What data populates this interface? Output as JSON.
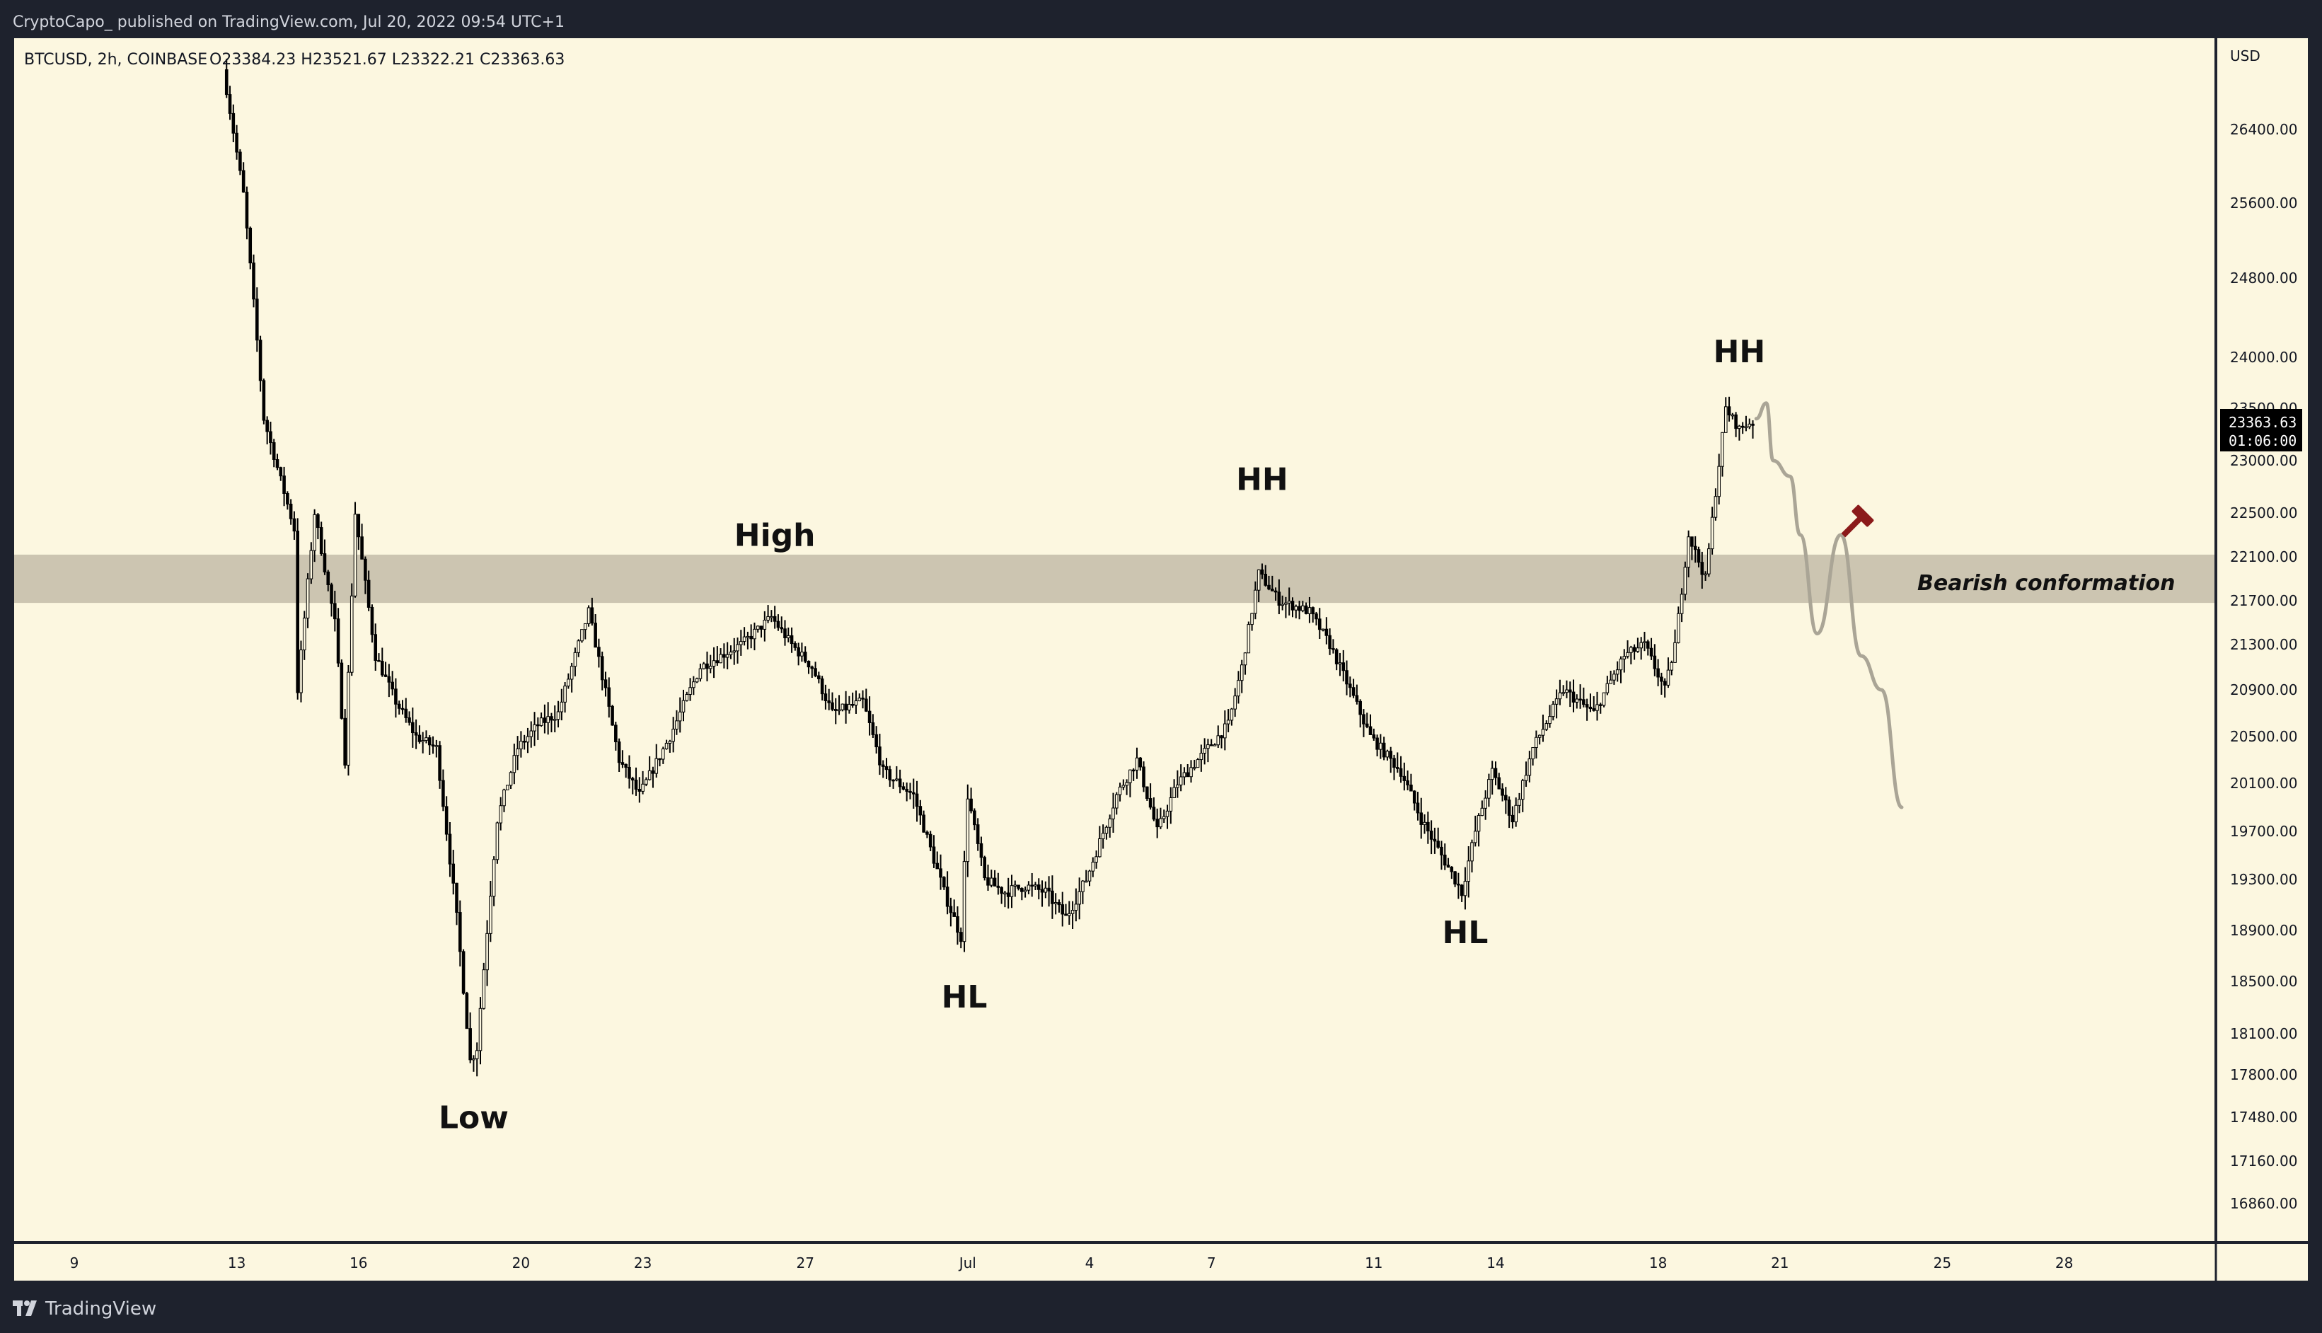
{
  "header": {
    "publish_line": "CryptoCapo_  published on TradingView.com, Jul 20, 2022 09:54 UTC+1"
  },
  "legend": {
    "symbol_line": "BTCUSD, 2h, COINBASE",
    "ohlc_line": "O23384.23  H23521.67  L23322.21  C23363.63"
  },
  "footer": {
    "brand": "TradingView"
  },
  "colors": {
    "background": "#fcf7e0",
    "frame": "#1e222d",
    "candle": "#000000",
    "zone": "#c9c2ae",
    "projection": "#aaa596",
    "tool_icon": "#8b1a1a",
    "price_tag": "#000000"
  },
  "chart_data": {
    "type": "candlestick",
    "title": "BTCUSD, 2h, COINBASE",
    "currency": "USD",
    "ylim": [
      16600,
      27100
    ],
    "y_ticks": [
      "26400.00",
      "25600.00",
      "24800.00",
      "24000.00",
      "23500.00",
      "23000.00",
      "22500.00",
      "22100.00",
      "21700.00",
      "21300.00",
      "20900.00",
      "20500.00",
      "20100.00",
      "19700.00",
      "19300.00",
      "18900.00",
      "18500.00",
      "18100.00",
      "17800.00",
      "17480.00",
      "17160.00",
      "16860.00"
    ],
    "x_ticks": [
      "9",
      "13",
      "16",
      "20",
      "23",
      "27",
      "Jul",
      "4",
      "7",
      "11",
      "14",
      "18",
      "21",
      "25",
      "28"
    ],
    "last_price": {
      "value": "23363.63",
      "countdown": "01:06:00"
    },
    "price_path": [
      {
        "t": "Jun 12 18:00",
        "p": 27050
      },
      {
        "t": "Jun 13 06:00",
        "p": 25700
      },
      {
        "t": "Jun 13 18:00",
        "p": 23400
      },
      {
        "t": "Jun 14 12:00",
        "p": 22350
      },
      {
        "t": "Jun 14 14:00",
        "p": 20900
      },
      {
        "t": "Jun 15 00:00",
        "p": 22500
      },
      {
        "t": "Jun 15 12:00",
        "p": 21500
      },
      {
        "t": "Jun 15 18:00",
        "p": 20300
      },
      {
        "t": "Jun 16 00:00",
        "p": 22500
      },
      {
        "t": "Jun 16 12:00",
        "p": 21200
      },
      {
        "t": "Jun 17 00:00",
        "p": 20800
      },
      {
        "t": "Jun 17 12:00",
        "p": 20500
      },
      {
        "t": "Jun 18 00:00",
        "p": 20400
      },
      {
        "t": "Jun 18 12:00",
        "p": 19000
      },
      {
        "t": "Jun 18 20:00",
        "p": 17900
      },
      {
        "t": "Jun 19 00:00",
        "p": 18000
      },
      {
        "t": "Jun 19 12:00",
        "p": 19800
      },
      {
        "t": "Jun 20 00:00",
        "p": 20400
      },
      {
        "t": "Jun 20 12:00",
        "p": 20600
      },
      {
        "t": "Jun 21 00:00",
        "p": 20700
      },
      {
        "t": "Jun 21 18:00",
        "p": 21600
      },
      {
        "t": "Jun 22 12:00",
        "p": 20300
      },
      {
        "t": "Jun 23 00:00",
        "p": 20000
      },
      {
        "t": "Jun 23 18:00",
        "p": 20500
      },
      {
        "t": "Jun 24 12:00",
        "p": 21100
      },
      {
        "t": "Jun 25 12:00",
        "p": 21300
      },
      {
        "t": "Jun 26 06:00",
        "p": 21550
      },
      {
        "t": "Jun 26 18:00",
        "p": 21300
      },
      {
        "t": "Jun 27 06:00",
        "p": 21100
      },
      {
        "t": "Jun 27 18:00",
        "p": 20700
      },
      {
        "t": "Jun 28 12:00",
        "p": 20800
      },
      {
        "t": "Jun 29 00:00",
        "p": 20200
      },
      {
        "t": "Jun 29 18:00",
        "p": 20000
      },
      {
        "t": "Jun 30 12:00",
        "p": 19200
      },
      {
        "t": "Jun 30 22:00",
        "p": 18850
      },
      {
        "t": "Jul 1 02:00",
        "p": 20000
      },
      {
        "t": "Jul 1 12:00",
        "p": 19300
      },
      {
        "t": "Jul 2 00:00",
        "p": 19200
      },
      {
        "t": "Jul 2 12:00",
        "p": 19250
      },
      {
        "t": "Jul 3 00:00",
        "p": 19200
      },
      {
        "t": "Jul 3 12:00",
        "p": 19000
      },
      {
        "t": "Jul 4 00:00",
        "p": 19300
      },
      {
        "t": "Jul 4 18:00",
        "p": 20000
      },
      {
        "t": "Jul 5 06:00",
        "p": 20300
      },
      {
        "t": "Jul 5 18:00",
        "p": 19700
      },
      {
        "t": "Jul 6 06:00",
        "p": 20100
      },
      {
        "t": "Jul 6 18:00",
        "p": 20300
      },
      {
        "t": "Jul 7 12:00",
        "p": 20600
      },
      {
        "t": "Jul 7 20:00",
        "p": 21100
      },
      {
        "t": "Jul 8 06:00",
        "p": 21950
      },
      {
        "t": "Jul 8 18:00",
        "p": 21700
      },
      {
        "t": "Jul 9 12:00",
        "p": 21600
      },
      {
        "t": "Jul 10 00:00",
        "p": 21300
      },
      {
        "t": "Jul 10 12:00",
        "p": 20900
      },
      {
        "t": "Jul 11 00:00",
        "p": 20500
      },
      {
        "t": "Jul 11 18:00",
        "p": 20200
      },
      {
        "t": "Jul 12 06:00",
        "p": 19800
      },
      {
        "t": "Jul 12 18:00",
        "p": 19500
      },
      {
        "t": "Jul 13 06:00",
        "p": 19200
      },
      {
        "t": "Jul 13 14:00",
        "p": 19700
      },
      {
        "t": "Jul 14 00:00",
        "p": 20200
      },
      {
        "t": "Jul 14 12:00",
        "p": 19800
      },
      {
        "t": "Jul 15 00:00",
        "p": 20400
      },
      {
        "t": "Jul 15 18:00",
        "p": 20900
      },
      {
        "t": "Jul 16 12:00",
        "p": 20700
      },
      {
        "t": "Jul 17 06:00",
        "p": 21200
      },
      {
        "t": "Jul 17 18:00",
        "p": 21300
      },
      {
        "t": "Jul 18 06:00",
        "p": 20900
      },
      {
        "t": "Jul 18 12:00",
        "p": 21300
      },
      {
        "t": "Jul 18 20:00",
        "p": 22300
      },
      {
        "t": "Jul 19 06:00",
        "p": 21900
      },
      {
        "t": "Jul 19 12:00",
        "p": 22700
      },
      {
        "t": "Jul 19 18:00",
        "p": 23500
      },
      {
        "t": "Jul 20 02:00",
        "p": 23300
      },
      {
        "t": "Jul 20 08:00",
        "p": 23363
      }
    ],
    "zone": {
      "label": "Bearish conformation",
      "low": 21680,
      "high": 22120
    },
    "projection": [
      {
        "t": "Jul 20 10:00",
        "p": 23400
      },
      {
        "t": "Jul 20 16:00",
        "p": 23550
      },
      {
        "t": "Jul 20 20:00",
        "p": 23000
      },
      {
        "t": "Jul 21 06:00",
        "p": 22850
      },
      {
        "t": "Jul 21 12:00",
        "p": 22300
      },
      {
        "t": "Jul 21 22:00",
        "p": 21400
      },
      {
        "t": "Jul 22 12:00",
        "p": 22300
      },
      {
        "t": "Jul 23 00:00",
        "p": 21200
      },
      {
        "t": "Jul 23 12:00",
        "p": 20900
      },
      {
        "t": "Jul 24 00:00",
        "p": 19900
      }
    ],
    "annotations": [
      {
        "text": "Low",
        "t": "Jun 18 20:00",
        "p": 17400
      },
      {
        "text": "High",
        "t": "Jun 26 06:00",
        "p": 22200
      },
      {
        "text": "HL",
        "t": "Jun 30 22:00",
        "p": 18300
      },
      {
        "text": "HH",
        "t": "Jul 8 06:00",
        "p": 22720
      },
      {
        "text": "HL",
        "t": "Jul 13 06:00",
        "p": 18800
      },
      {
        "text": "HH",
        "t": "Jul 20 00:00",
        "p": 23950
      }
    ]
  }
}
